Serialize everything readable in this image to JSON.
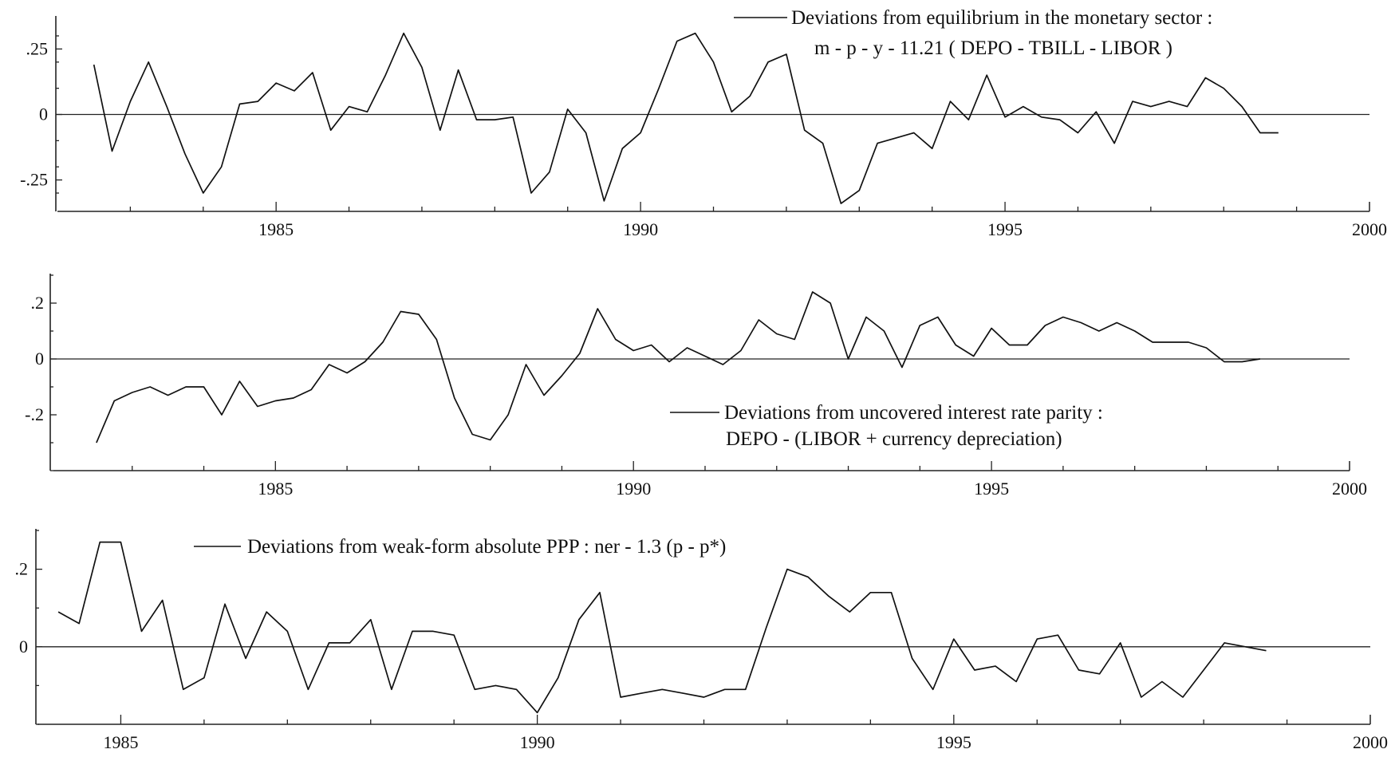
{
  "chart_data": [
    {
      "type": "line",
      "title": "",
      "legend": {
        "line1": "Deviations from equilibrium in the monetary sector :",
        "line2": "m - p - y  - 11.21 ( DEPO - TBILL - LIBOR )",
        "placement": "top-right"
      },
      "xlim": [
        1982.0,
        2000.0
      ],
      "ylim": [
        -0.37,
        0.37
      ],
      "x_ticks": [
        "1985",
        "1990",
        "1995",
        "2000"
      ],
      "y_ticks": [
        ".25",
        "0",
        "-.25"
      ],
      "series": [
        {
          "name": "Deviations from equilibrium in the monetary sector",
          "x": [
            1982.5,
            1982.75,
            1983.0,
            1983.25,
            1983.5,
            1983.75,
            1984.0,
            1984.25,
            1984.5,
            1984.75,
            1985.0,
            1985.25,
            1985.5,
            1985.75,
            1986.0,
            1986.25,
            1986.5,
            1986.75,
            1987.0,
            1987.25,
            1987.5,
            1987.75,
            1988.0,
            1988.25,
            1988.5,
            1988.75,
            1989.0,
            1989.25,
            1989.5,
            1989.75,
            1990.0,
            1990.25,
            1990.5,
            1990.75,
            1991.0,
            1991.25,
            1991.5,
            1991.75,
            1992.0,
            1992.25,
            1992.5,
            1992.75,
            1993.0,
            1993.25,
            1993.5,
            1993.75,
            1994.0,
            1994.25,
            1994.5,
            1994.75,
            1995.0,
            1995.25,
            1995.5,
            1995.75,
            1996.0,
            1996.25,
            1996.5,
            1996.75,
            1997.0,
            1997.25,
            1997.5,
            1997.75,
            1998.0,
            1998.25,
            1998.5,
            1998.75
          ],
          "values": [
            0.19,
            -0.14,
            0.05,
            0.2,
            0.03,
            -0.15,
            -0.3,
            -0.2,
            0.04,
            0.05,
            0.12,
            0.09,
            0.16,
            -0.06,
            0.03,
            0.01,
            0.15,
            0.31,
            0.18,
            -0.06,
            0.17,
            -0.02,
            -0.02,
            -0.01,
            -0.3,
            -0.22,
            0.02,
            -0.07,
            -0.33,
            -0.13,
            -0.07,
            0.1,
            0.28,
            0.31,
            0.2,
            0.01,
            0.07,
            0.2,
            0.23,
            -0.06,
            -0.11,
            -0.34,
            -0.29,
            -0.11,
            -0.09,
            -0.07,
            -0.13,
            0.05,
            -0.02,
            0.15,
            -0.01,
            0.03,
            -0.01,
            -0.02,
            -0.07,
            0.01,
            -0.11,
            0.05,
            0.03,
            0.05,
            0.03,
            0.14,
            0.1,
            0.03,
            -0.07,
            -0.07
          ]
        }
      ]
    },
    {
      "type": "line",
      "title": "",
      "legend": {
        "line1": "Deviations from uncovered interest rate parity :",
        "line2": "DEPO - (LIBOR + currency depreciation)",
        "placement": "bottom-right"
      },
      "xlim": [
        1981.9,
        2000.0
      ],
      "ylim": [
        -0.4,
        0.3
      ],
      "x_ticks": [
        "1985",
        "1990",
        "1995",
        "2000"
      ],
      "y_ticks": [
        ".2",
        "0",
        "-.2"
      ],
      "series": [
        {
          "name": "Deviations from uncovered interest rate parity",
          "x": [
            1982.5,
            1982.75,
            1983.0,
            1983.25,
            1983.5,
            1983.75,
            1984.0,
            1984.25,
            1984.5,
            1984.75,
            1985.0,
            1985.25,
            1985.5,
            1985.75,
            1986.0,
            1986.25,
            1986.5,
            1986.75,
            1987.0,
            1987.25,
            1987.5,
            1987.75,
            1988.0,
            1988.25,
            1988.5,
            1988.75,
            1989.0,
            1989.25,
            1989.5,
            1989.75,
            1990.0,
            1990.25,
            1990.5,
            1990.75,
            1991.0,
            1991.25,
            1991.5,
            1991.75,
            1992.0,
            1992.25,
            1992.5,
            1992.75,
            1993.0,
            1993.25,
            1993.5,
            1993.75,
            1994.0,
            1994.25,
            1994.5,
            1994.75,
            1995.0,
            1995.25,
            1995.5,
            1995.75,
            1996.0,
            1996.25,
            1996.5,
            1996.75,
            1997.0,
            1997.25,
            1997.5,
            1997.75,
            1998.0,
            1998.25,
            1998.5,
            1998.75
          ],
          "values": [
            -0.3,
            -0.15,
            -0.12,
            -0.1,
            -0.13,
            -0.1,
            -0.1,
            -0.2,
            -0.08,
            -0.17,
            -0.15,
            -0.14,
            -0.11,
            -0.02,
            -0.05,
            -0.01,
            0.06,
            0.17,
            0.16,
            0.07,
            -0.14,
            -0.27,
            -0.29,
            -0.2,
            -0.02,
            -0.13,
            -0.06,
            0.02,
            0.18,
            0.07,
            0.03,
            0.05,
            -0.01,
            0.04,
            0.01,
            -0.02,
            0.03,
            0.14,
            0.09,
            0.07,
            0.24,
            0.2,
            0.0,
            0.15,
            0.1,
            -0.03,
            0.12,
            0.15,
            0.05,
            0.01,
            0.11,
            0.05,
            0.05,
            0.12,
            0.15,
            0.13,
            0.1,
            0.13,
            0.1,
            0.06,
            0.06,
            0.06,
            0.04,
            -0.01,
            -0.01,
            0.0
          ]
        }
      ]
    },
    {
      "type": "line",
      "title": "",
      "legend": {
        "line1": "Deviations from weak-form absolute PPP : ner - 1.3 (p - p*)",
        "placement": "top-left"
      },
      "xlim": [
        1984.0,
        2000.0
      ],
      "ylim": [
        -0.2,
        0.3
      ],
      "x_ticks": [
        "1985",
        "1990",
        "1995",
        "2000"
      ],
      "y_ticks": [
        ".2",
        "0"
      ],
      "series": [
        {
          "name": "Deviations from weak-form absolute PPP",
          "x": [
            1984.25,
            1984.5,
            1984.75,
            1985.0,
            1985.25,
            1985.5,
            1985.75,
            1986.0,
            1986.25,
            1986.5,
            1986.75,
            1987.0,
            1987.25,
            1987.5,
            1987.75,
            1988.0,
            1988.25,
            1988.5,
            1988.75,
            1989.0,
            1989.25,
            1989.5,
            1989.75,
            1990.0,
            1990.25,
            1990.5,
            1990.75,
            1991.0,
            1991.25,
            1991.5,
            1991.75,
            1992.0,
            1992.25,
            1992.5,
            1992.75,
            1993.0,
            1993.25,
            1993.5,
            1993.75,
            1994.0,
            1994.25,
            1994.5,
            1994.75,
            1995.0,
            1995.25,
            1995.5,
            1995.75,
            1996.0,
            1996.25,
            1996.5,
            1996.75,
            1997.0,
            1997.25,
            1997.5,
            1997.75,
            1998.0,
            1998.25,
            1998.5,
            1998.75
          ],
          "values": [
            0.09,
            0.06,
            0.27,
            0.27,
            0.04,
            0.12,
            -0.11,
            -0.08,
            0.11,
            -0.03,
            0.09,
            0.04,
            -0.11,
            0.01,
            0.01,
            0.07,
            -0.11,
            0.04,
            0.04,
            0.03,
            -0.11,
            -0.1,
            -0.11,
            -0.17,
            -0.08,
            0.07,
            0.14,
            -0.13,
            -0.12,
            -0.11,
            -0.12,
            -0.13,
            -0.11,
            -0.11,
            0.05,
            0.2,
            0.18,
            0.13,
            0.09,
            0.14,
            0.14,
            -0.03,
            -0.11,
            0.02,
            -0.06,
            -0.05,
            -0.09,
            0.02,
            0.03,
            -0.06,
            -0.07,
            0.01,
            -0.13,
            -0.09,
            -0.13,
            -0.06,
            0.01,
            0.0,
            -0.01
          ]
        }
      ]
    }
  ]
}
